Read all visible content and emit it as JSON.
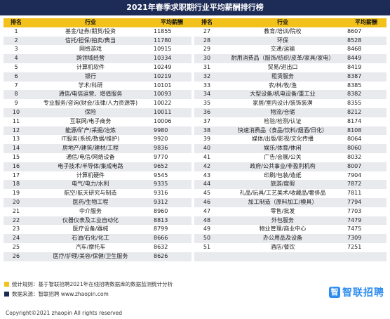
{
  "title": "2021年春季求职期行业平均薪酬排行榜",
  "headers": {
    "rank": "排名",
    "industry": "行业",
    "salary": "平均薪酬"
  },
  "rows": [
    [
      [
        "1",
        "基金/证券/期货/投资",
        "11855"
      ],
      [
        "27",
        "教育/培训/院校",
        "8607"
      ]
    ],
    [
      [
        "2",
        "信托/担保/拍卖/典当",
        "11780"
      ],
      [
        "28",
        "环保",
        "8528"
      ]
    ],
    [
      [
        "3",
        "网络游戏",
        "10915"
      ],
      [
        "29",
        "交通/运输",
        "8468"
      ]
    ],
    [
      [
        "4",
        "跨领域经营",
        "10334"
      ],
      [
        "30",
        "耐用消费品（服饰/纺织/皮革/家具/家电）",
        "8449"
      ]
    ],
    [
      [
        "5",
        "计算机软件",
        "10249"
      ],
      [
        "31",
        "贸易/进出口",
        "8419"
      ]
    ],
    [
      [
        "6",
        "银行",
        "10219"
      ],
      [
        "32",
        "租赁服务",
        "8387"
      ]
    ],
    [
      [
        "7",
        "学术/科研",
        "10101"
      ],
      [
        "33",
        "农/林/牧/渔",
        "8385"
      ]
    ],
    [
      [
        "8",
        "通信/电信运营、增值服务",
        "10093"
      ],
      [
        "34",
        "大型设备/机电设备/重工业",
        "8382"
      ]
    ],
    [
      [
        "9",
        "专业服务/咨询(财会/法律/人力资源等)",
        "10022"
      ],
      [
        "35",
        "家居/室内设计/装饰装潢",
        "8355"
      ]
    ],
    [
      [
        "10",
        "保险",
        "10011"
      ],
      [
        "36",
        "物流/仓储",
        "8212"
      ]
    ],
    [
      [
        "11",
        "互联网/电子商务",
        "10006"
      ],
      [
        "37",
        "检验/检测/认证",
        "8174"
      ]
    ],
    [
      [
        "12",
        "能源/矿产/采掘/冶炼",
        "9980"
      ],
      [
        "38",
        "快速消费品（食品/饮料/烟酒/日化）",
        "8108"
      ]
    ],
    [
      [
        "13",
        "IT服务(系统/数据/维护)",
        "9920"
      ],
      [
        "39",
        "媒体/出版/影视/文化传播",
        "8064"
      ]
    ],
    [
      [
        "14",
        "房地产/建筑/建材/工程",
        "9836"
      ],
      [
        "40",
        "娱乐/体育/休闲",
        "8060"
      ]
    ],
    [
      [
        "15",
        "通信/电信/网络设备",
        "9770"
      ],
      [
        "41",
        "广告/会展/公关",
        "8032"
      ]
    ],
    [
      [
        "16",
        "电子技术/半导体/集成电路",
        "9652"
      ],
      [
        "42",
        "政府/公共事业/非盈利机构",
        "8007"
      ]
    ],
    [
      [
        "17",
        "计算机硬件",
        "9545"
      ],
      [
        "43",
        "印刷/包装/造纸",
        "7904"
      ]
    ],
    [
      [
        "18",
        "电气/电力/水利",
        "9335"
      ],
      [
        "44",
        "旅游/度假",
        "7872"
      ]
    ],
    [
      [
        "19",
        "航空/航天研究与制造",
        "9316"
      ],
      [
        "45",
        "礼品/玩具/工艺美术/收藏品/奢侈品",
        "7811"
      ]
    ],
    [
      [
        "20",
        "医药/生物工程",
        "9312"
      ],
      [
        "46",
        "加工制造（原料加工/模具）",
        "7794"
      ]
    ],
    [
      [
        "21",
        "中介服务",
        "8960"
      ],
      [
        "47",
        "零售/批发",
        "7703"
      ]
    ],
    [
      [
        "22",
        "仪器仪表及工业自动化",
        "8813"
      ],
      [
        "48",
        "外包服务",
        "7479"
      ]
    ],
    [
      [
        "23",
        "医疗设备/器械",
        "8799"
      ],
      [
        "49",
        "物业管理/商业中心",
        "7475"
      ]
    ],
    [
      [
        "24",
        "石油/石化/化工",
        "8666"
      ],
      [
        "50",
        "办公用品及设备",
        "7309"
      ]
    ],
    [
      [
        "25",
        "汽车/摩托车",
        "8632"
      ],
      [
        "51",
        "酒店/餐饮",
        "7251"
      ]
    ],
    [
      [
        "26",
        "医疗/护理/美容/保健/卫生服务",
        "8626"
      ],
      [
        "",
        "",
        ""
      ]
    ]
  ],
  "footer": {
    "note1": "统计规则：基于智联招聘2021年在线招聘数据库的数据监测统计分析",
    "note2": "数据来源：智联招聘 www.zhaopin.com",
    "copyright": "Copyright©2021 zhaopin All rights reserved",
    "logo_text": "智联招聘",
    "logo_mark": "智",
    "note1_color": "#f2c21b",
    "note2_color": "#1d2b57"
  }
}
